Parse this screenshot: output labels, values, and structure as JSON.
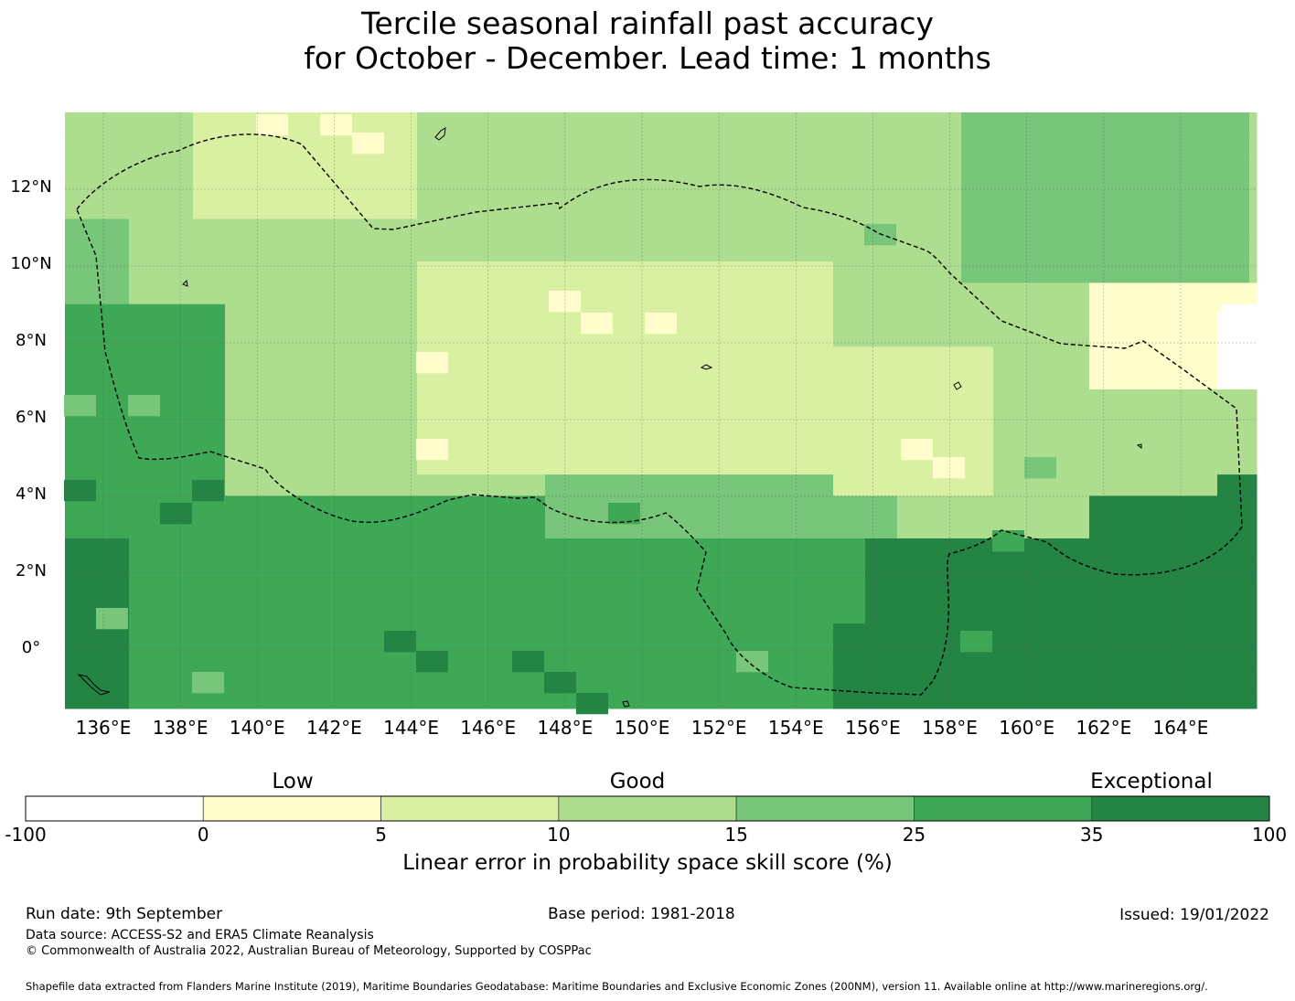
{
  "title": {
    "line1": "Tercile seasonal rainfall past accuracy",
    "line2": "for October - December. Lead time: 1 months"
  },
  "map": {
    "x_axis": {
      "ticks": [
        "136°E",
        "138°E",
        "140°E",
        "142°E",
        "144°E",
        "146°E",
        "148°E",
        "150°E",
        "152°E",
        "154°E",
        "156°E",
        "158°E",
        "160°E",
        "162°E",
        "164°E"
      ],
      "range_deg": [
        135,
        166
      ]
    },
    "y_axis": {
      "ticks": [
        "12°N",
        "10°N",
        "8°N",
        "6°N",
        "4°N",
        "2°N",
        "0°"
      ],
      "range_deg": [
        -1.5,
        14
      ]
    },
    "gridlines": true,
    "boundary_style": "dashed"
  },
  "colorbar": {
    "categories": {
      "low": "Low",
      "good": "Good",
      "exceptional": "Exceptional"
    },
    "bins": [
      {
        "from": "-100",
        "to": "0",
        "color": "#ffffff"
      },
      {
        "from": "0",
        "to": "5",
        "color": "#fffdcc"
      },
      {
        "from": "5",
        "to": "10",
        "color": "#d9f0a3"
      },
      {
        "from": "10",
        "to": "15",
        "color": "#addd8e"
      },
      {
        "from": "15",
        "to": "25",
        "color": "#78c679"
      },
      {
        "from": "25",
        "to": "35",
        "color": "#3fa856"
      },
      {
        "from": "35",
        "to": "100",
        "color": "#238443"
      }
    ],
    "tick_labels": [
      "-100",
      "0",
      "5",
      "10",
      "15",
      "25",
      "35",
      "100"
    ],
    "title": "Linear error in probability space skill score (%)"
  },
  "footer": {
    "run_date": "Run date: 9th September",
    "base_period": "Base period: 1981-2018",
    "issued": "Issued: 19/01/2022",
    "data_source": "Data source: ACCESS-S2 and ERA5 Climate Reanalysis",
    "copyright": "© Commonwealth of Australia 2022, Australian Bureau of Meteorology, Supported by COSPPac",
    "shapefile": "Shapefile data extracted from Flanders Marine Institute (2019), Maritime Boundaries Geodatabase: Maritime Boundaries and Exclusive Economic Zones (200NM), version 11. Available online at http://www.marineregions.org/."
  }
}
